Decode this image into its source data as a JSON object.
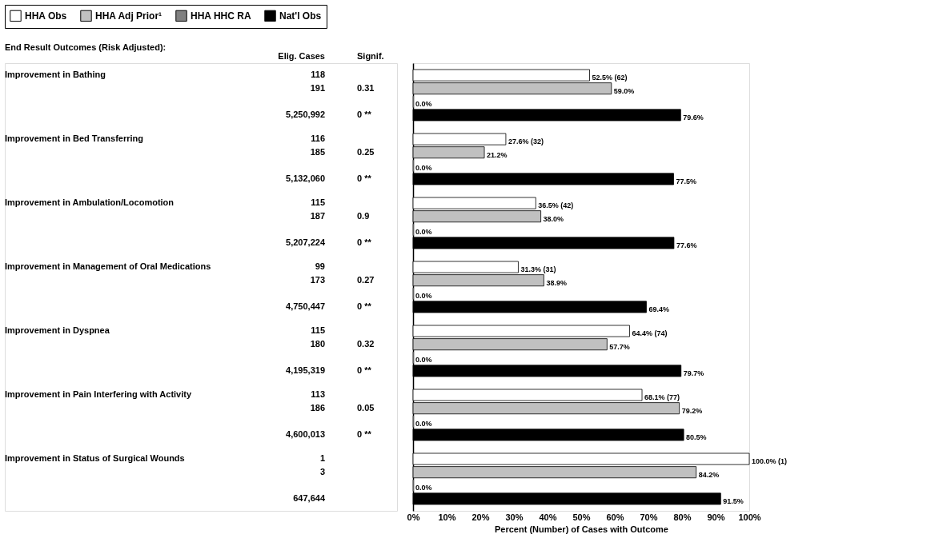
{
  "chart_data": [
    {
      "type": "other",
      "title": "End Result Outcomes (Risk Adjusted):",
      "categories": [
        "Improvement in Bathing",
        "Improvement in Bed Transferring",
        "Improvement in Ambulation/Locomotion",
        "Improvement in Management of Oral Medications",
        "Improvement in Dyspnea",
        "Improvement in Pain Interfering with Activity",
        "Improvement in Status of Surgical Wounds"
      ],
      "annotations": [
        "Elig. Cases",
        "Signif.",
        "118",
        null,
        "191",
        "0.31",
        "5,250,992",
        "0 **",
        "116",
        null,
        "185",
        "0.25",
        "5,132,060",
        "0 **",
        "115",
        null,
        "187",
        "0.9",
        "5,207,224",
        "0 **",
        "99",
        null,
        "173",
        "0.27",
        "4,750,447",
        "0 **",
        "115",
        null,
        "180",
        "0.32",
        "4,195,319",
        "0 **",
        "113",
        null,
        "186",
        "0.05",
        "4,600,013",
        "0 **",
        "1",
        null,
        "3",
        null,
        "647,644",
        null
      ]
    },
    {
      "type": "bar",
      "orientation": "horizontal",
      "legend": "top",
      "grid": false,
      "tick_labels": "x",
      "categories": [
        null,
        null,
        null,
        null,
        null,
        null,
        null
      ],
      "xlabel": "Percent (Number) of Cases with Outcome",
      "xlim": [
        0,
        100
      ],
      "xticks": [
        {
          "value": 0,
          "label": "0%"
        },
        {
          "value": 10,
          "label": "10%"
        },
        {
          "value": 20,
          "label": "20%"
        },
        {
          "value": 30,
          "label": "30%"
        },
        {
          "value": 40,
          "label": "40%"
        },
        {
          "value": 50,
          "label": "50%"
        },
        {
          "value": 60,
          "label": "60%"
        },
        {
          "value": 70,
          "label": "70%"
        },
        {
          "value": 80,
          "label": "80%"
        },
        {
          "value": 90,
          "label": "90%"
        },
        {
          "value": 100,
          "label": "100%"
        }
      ],
      "series": [
        {
          "name": "HHA Obs",
          "color": "#ffffff",
          "values": [
            52.5,
            27.6,
            36.5,
            31.3,
            64.4,
            68.1,
            100.0
          ],
          "value_labels": [
            "52.5% (62)",
            "27.6% (32)",
            "36.5% (42)",
            "31.3% (31)",
            "64.4% (74)",
            "68.1% (77)",
            "100.0% (1)"
          ]
        },
        {
          "name": "HHA Adj Prior¹",
          "color": "#c0c0c0",
          "values": [
            59.0,
            21.2,
            38.0,
            38.9,
            57.7,
            79.2,
            84.2
          ],
          "value_labels": [
            "59.0%",
            "21.2%",
            "38.0%",
            "38.9%",
            "57.7%",
            "79.2%",
            "84.2%"
          ]
        },
        {
          "name": "HHA HHC RA",
          "color": "#808080",
          "values": [
            0,
            0,
            0,
            0,
            0,
            0,
            0
          ],
          "value_labels": [
            "0.0%",
            "0.0%",
            "0.0%",
            "0.0%",
            "0.0%",
            "0.0%",
            "0.0%"
          ]
        },
        {
          "name": "Nat'l Obs",
          "color": "#000000",
          "values": [
            79.6,
            77.5,
            77.6,
            69.4,
            79.7,
            80.5,
            91.5
          ],
          "value_labels": [
            "79.6%",
            "77.5%",
            "77.6%",
            "69.4%",
            "79.7%",
            "80.5%",
            "91.5%"
          ]
        }
      ]
    }
  ]
}
